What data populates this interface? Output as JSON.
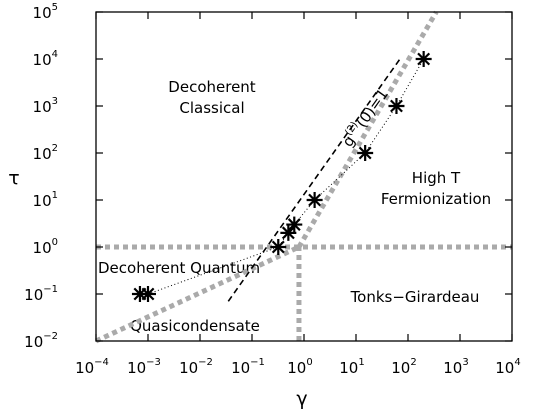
{
  "chart_data": {
    "type": "scatter",
    "xlabel": "γ",
    "ylabel": "τ",
    "xscale": "log",
    "yscale": "log",
    "xlim": [
      0.0001,
      10000
    ],
    "ylim": [
      0.01,
      100000
    ],
    "grid": false,
    "colors": {
      "markers": "#000000",
      "boundaries": "#aaaaaa",
      "g2_line": "#000000",
      "fit_line": "#000000"
    },
    "xticks": [
      {
        "base": "10",
        "exp": "−4",
        "value": 0.0001
      },
      {
        "base": "10",
        "exp": "−3",
        "value": 0.001
      },
      {
        "base": "10",
        "exp": "−2",
        "value": 0.01
      },
      {
        "base": "10",
        "exp": "−1",
        "value": 0.1
      },
      {
        "base": "10",
        "exp": "0",
        "value": 1
      },
      {
        "base": "10",
        "exp": "1",
        "value": 10
      },
      {
        "base": "10",
        "exp": "2",
        "value": 100
      },
      {
        "base": "10",
        "exp": "3",
        "value": 1000
      },
      {
        "base": "10",
        "exp": "4",
        "value": 10000
      }
    ],
    "yticks": [
      {
        "base": "10",
        "exp": "−2",
        "value": 0.01
      },
      {
        "base": "10",
        "exp": "−1",
        "value": 0.1
      },
      {
        "base": "10",
        "exp": "0",
        "value": 1
      },
      {
        "base": "10",
        "exp": "1",
        "value": 10
      },
      {
        "base": "10",
        "exp": "2",
        "value": 100
      },
      {
        "base": "10",
        "exp": "3",
        "value": 1000
      },
      {
        "base": "10",
        "exp": "4",
        "value": 10000
      },
      {
        "base": "10",
        "exp": "5",
        "value": 100000
      }
    ],
    "data_points": [
      {
        "x": 0.0007,
        "y": 0.1
      },
      {
        "x": 0.001,
        "y": 0.1
      },
      {
        "x": 0.32,
        "y": 1
      },
      {
        "x": 0.5,
        "y": 2
      },
      {
        "x": 0.65,
        "y": 3
      },
      {
        "x": 1.6,
        "y": 10
      },
      {
        "x": 15,
        "y": 100
      },
      {
        "x": 60,
        "y": 1000
      },
      {
        "x": 200,
        "y": 10000
      }
    ],
    "boundaries": [
      {
        "points": [
          [
            0.0001,
            1
          ],
          [
            10000,
            1
          ]
        ]
      },
      {
        "points": [
          [
            0.8,
            0.01
          ],
          [
            0.8,
            1
          ]
        ]
      },
      {
        "points": [
          [
            0.0001,
            0.01
          ],
          [
            0.8,
            1
          ]
        ]
      },
      {
        "points": [
          [
            0.8,
            1
          ],
          [
            350,
            100000
          ]
        ]
      }
    ],
    "g2_line": {
      "label_base": "g",
      "label_sup": "(2)",
      "label_rest": "(0)=1",
      "points": [
        [
          0.035,
          0.07
        ],
        [
          70,
          10000
        ]
      ]
    },
    "fit_line": {
      "points": [
        [
          0.001,
          0.1
        ],
        [
          0.32,
          1
        ],
        [
          0.65,
          3
        ],
        [
          1.6,
          10
        ],
        [
          15,
          100
        ],
        [
          60,
          1000
        ],
        [
          200,
          10000
        ]
      ]
    },
    "regions": [
      {
        "id": "decoherent-classical",
        "lines": [
          "Decoherent",
          "Classical"
        ]
      },
      {
        "id": "high-t-fermionization",
        "lines": [
          "High T",
          "Fermionization"
        ]
      },
      {
        "id": "decoherent-quantum",
        "lines": [
          "Decoherent Quantum"
        ]
      },
      {
        "id": "tonks-girardeau",
        "lines": [
          "Tonks−Girardeau"
        ]
      },
      {
        "id": "quasicondensate",
        "lines": [
          "Quasicondensate"
        ]
      }
    ]
  }
}
